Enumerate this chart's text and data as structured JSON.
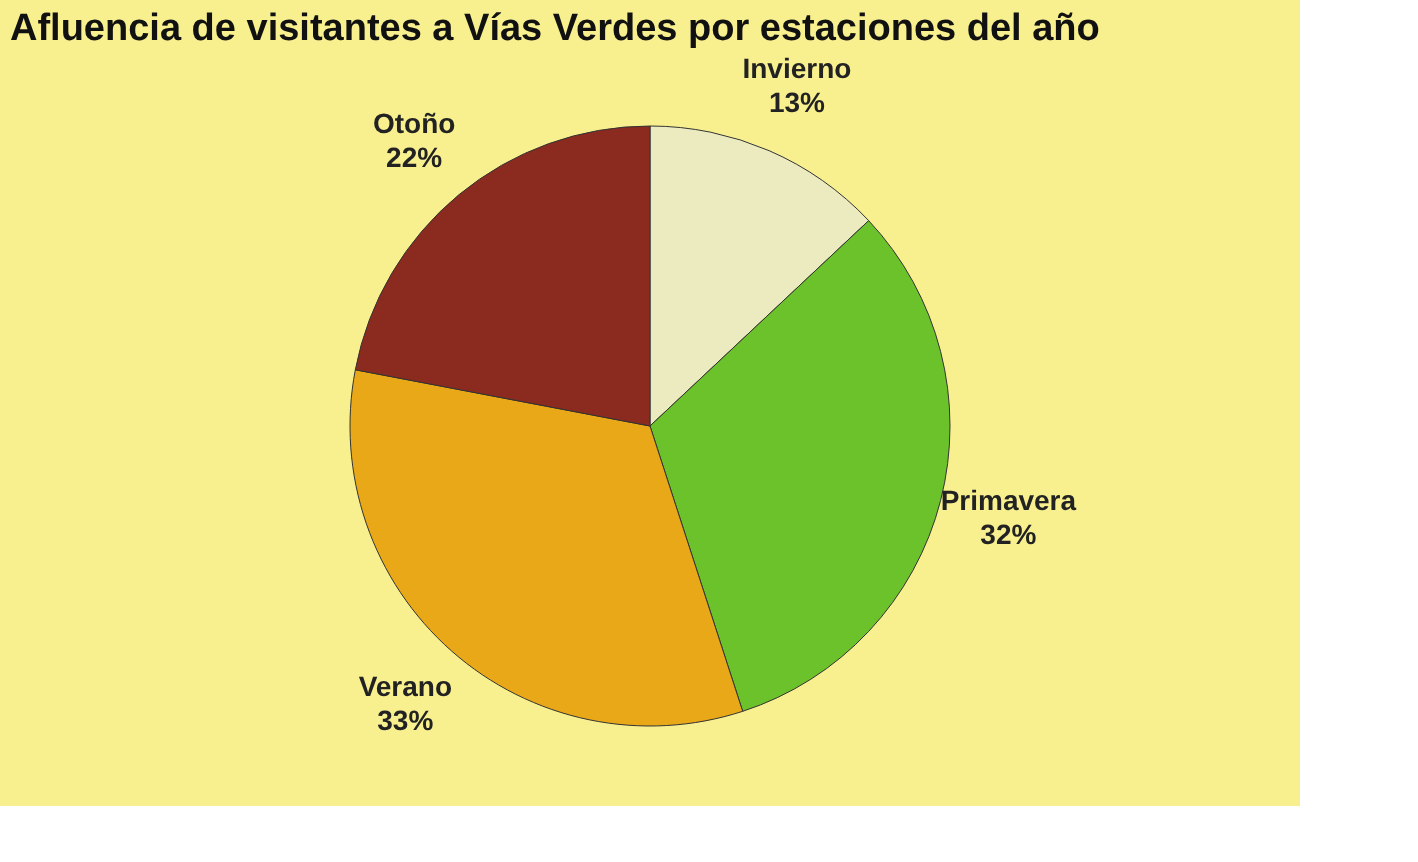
{
  "chart_data": {
    "type": "pie",
    "title": "Afluencia de visitantes a Vías Verdes por estaciones del año",
    "categories": [
      "Invierno",
      "Primavera",
      "Verano",
      "Otoño"
    ],
    "values": [
      13,
      32,
      33,
      22
    ],
    "value_labels": [
      "13%",
      "32%",
      "33%",
      "22%"
    ],
    "colors": [
      "#ecebc0",
      "#6cc22a",
      "#e8a817",
      "#8b2a1e"
    ],
    "legend": false
  }
}
